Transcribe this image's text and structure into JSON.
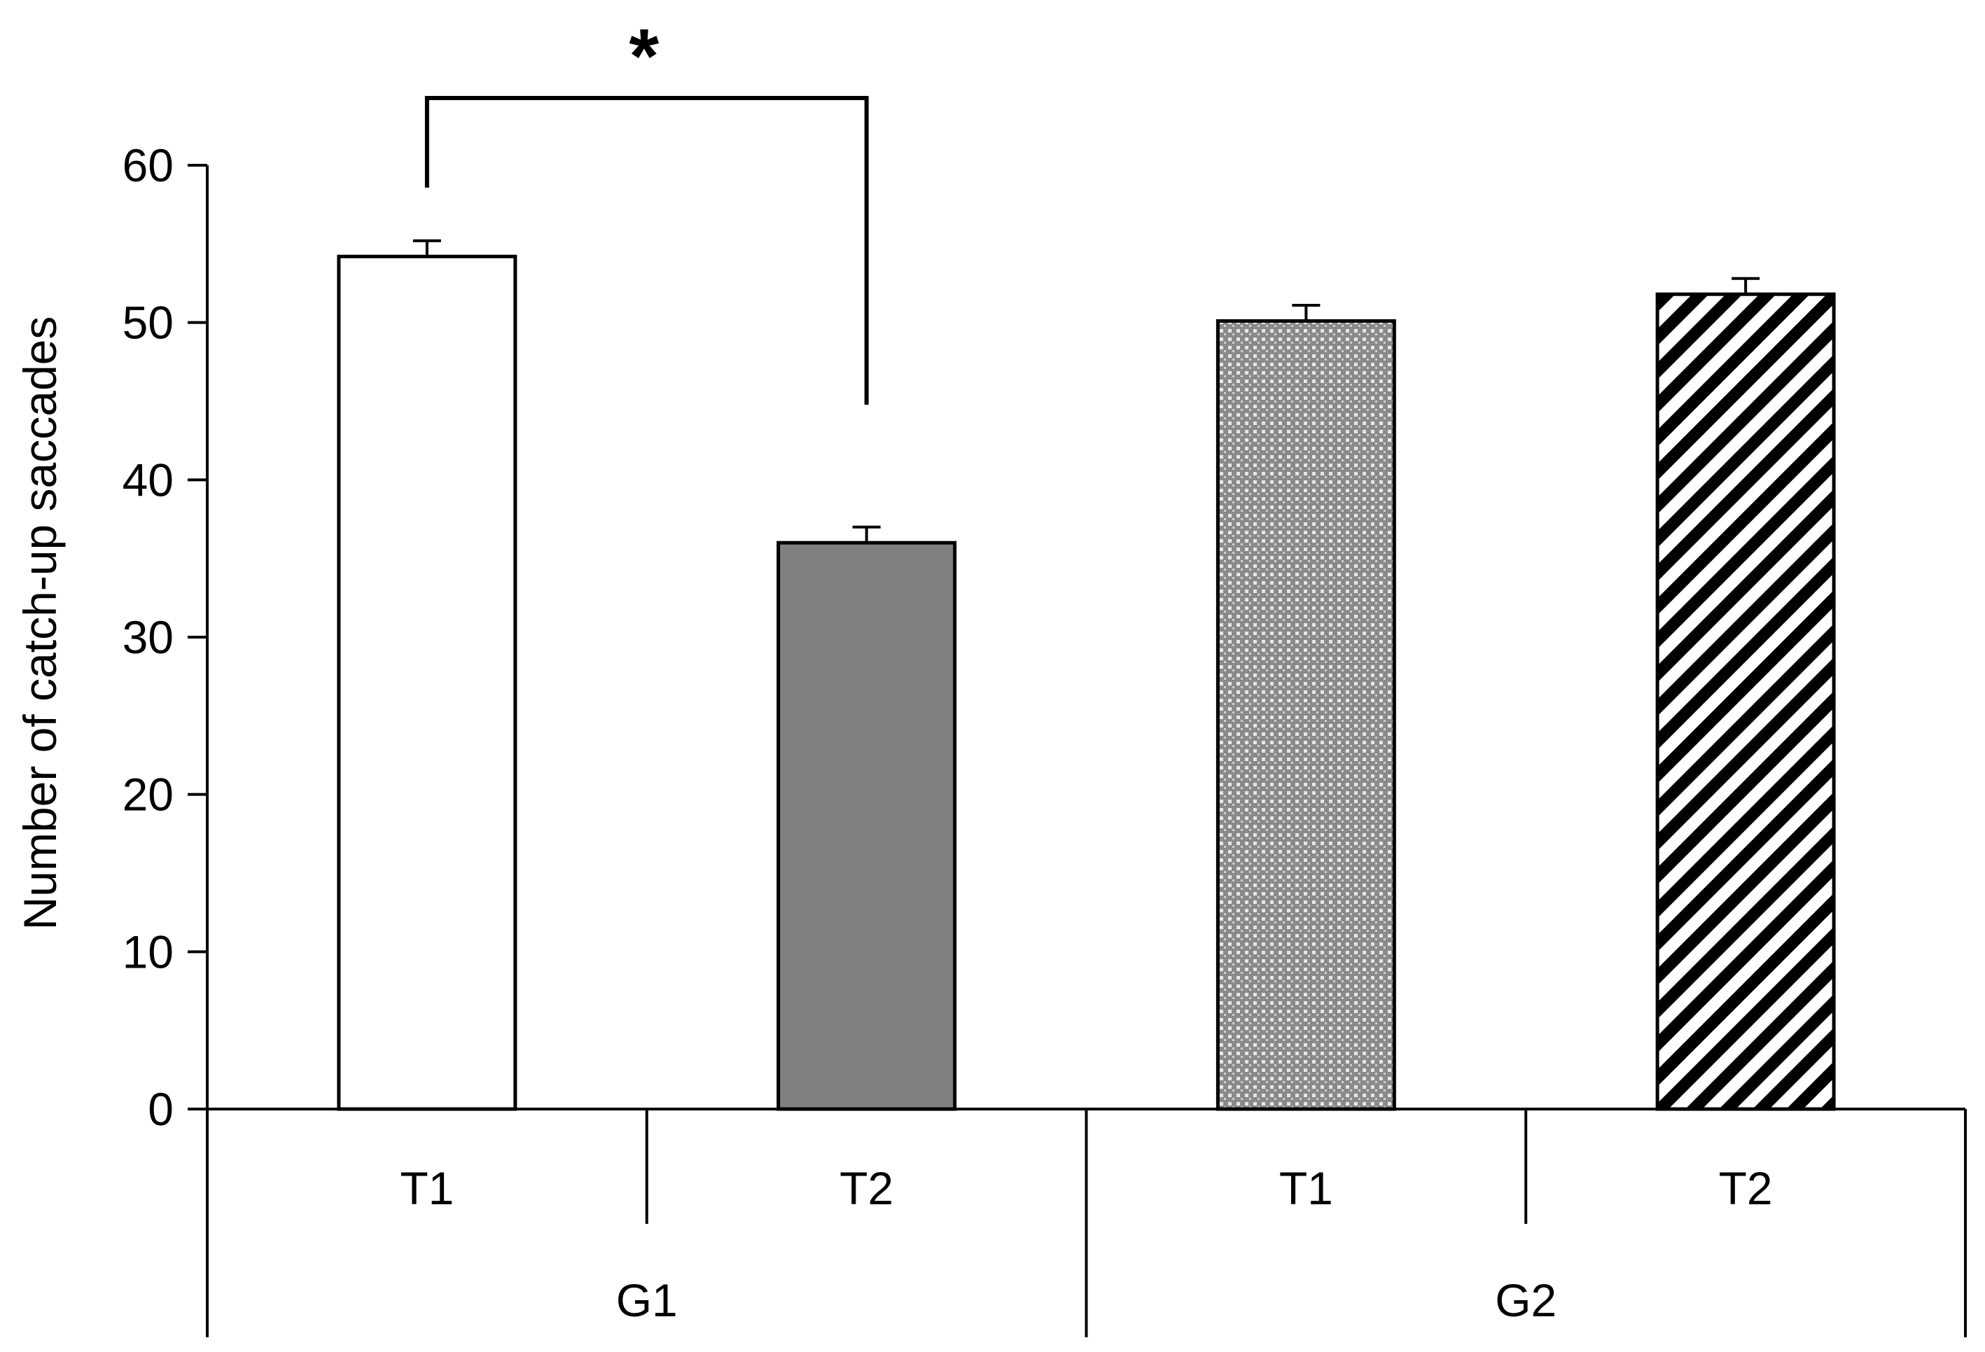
{
  "chart_data": {
    "type": "bar",
    "title": "",
    "xlabel": "",
    "ylabel": "Number of catch-up saccades",
    "ylim": [
      0,
      60
    ],
    "yticks": [
      "0",
      "10",
      "20",
      "30",
      "40",
      "50",
      "60"
    ],
    "grid": false,
    "groups": [
      {
        "label": "G1",
        "categories": [
          "T1",
          "T2"
        ]
      },
      {
        "label": "G2",
        "categories": [
          "T1",
          "T2"
        ]
      }
    ],
    "bars": [
      {
        "group": "G1",
        "category": "T1",
        "value": 54.2,
        "error": 1.0,
        "fill": "white"
      },
      {
        "group": "G1",
        "category": "T2",
        "value": 36.0,
        "error": 1.0,
        "fill": "#808080"
      },
      {
        "group": "G2",
        "category": "T1",
        "value": 50.1,
        "error": 1.0,
        "fill": "dotted-grey"
      },
      {
        "group": "G2",
        "category": "T2",
        "value": 51.8,
        "error": 1.0,
        "fill": "diagonal-stripes"
      }
    ],
    "annotations": [
      {
        "text": "*",
        "between": [
          "G1 T1",
          "G1 T2"
        ]
      }
    ]
  }
}
